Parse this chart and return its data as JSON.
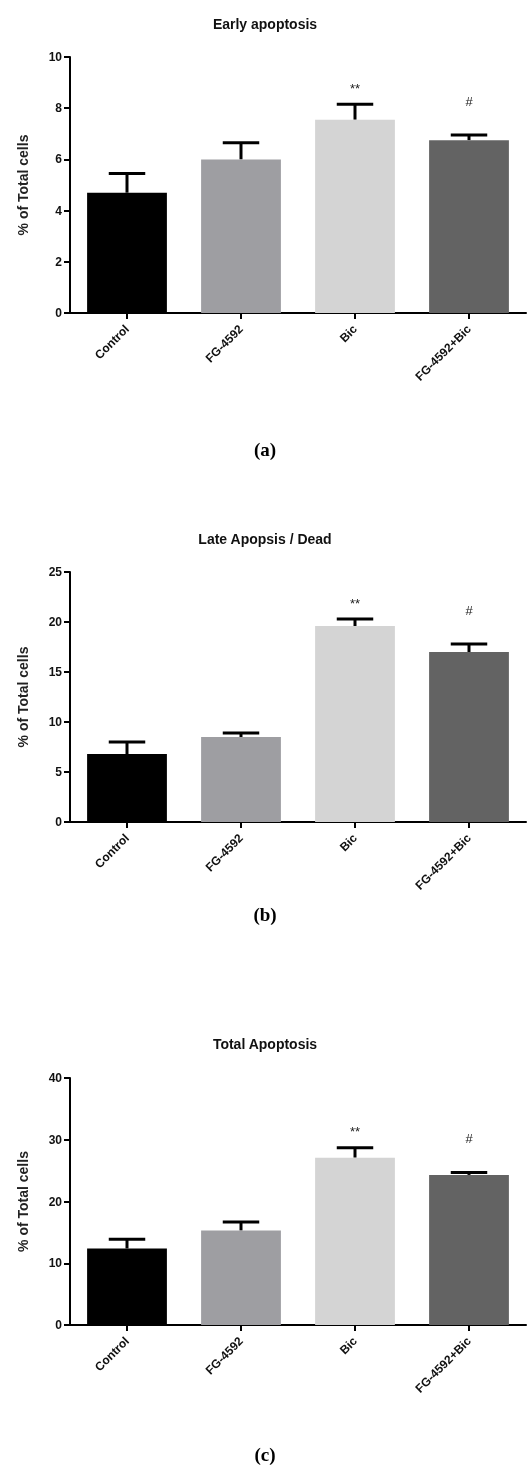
{
  "chart_data": [
    {
      "type": "bar",
      "title": "Early apoptosis",
      "ylabel": "% of Total cells",
      "categories": [
        "Control",
        "FG-4592",
        "Bic",
        "FG-4592+Bic"
      ],
      "values": [
        4.7,
        6.0,
        7.55,
        6.75
      ],
      "colors": [
        "#000000",
        "#9e9ea2",
        "#d4d4d4",
        "#636363"
      ],
      "errors": [
        [
          4.7,
          5.45
        ],
        [
          6.0,
          6.65
        ],
        [
          7.55,
          8.15
        ],
        [
          6.75,
          6.95
        ]
      ],
      "ylim": [
        0,
        10
      ],
      "yticks": [
        0,
        2,
        4,
        6,
        8,
        10
      ],
      "grid": false,
      "annotations": [
        {
          "text": "**",
          "x": "Bic",
          "y": 8.15
        },
        {
          "text": "#",
          "x": "FG-4592+Bic",
          "y": 6.95
        },
        "(a)"
      ]
    },
    {
      "type": "bar",
      "title": "Late Apopsis / Dead",
      "ylabel": "% of Total cells",
      "categories": [
        "Control",
        "FG-4592",
        "Bic",
        "FG-4592+Bic"
      ],
      "values": [
        6.8,
        8.5,
        19.6,
        17.0
      ],
      "colors": [
        "#000000",
        "#9e9ea2",
        "#d4d4d4",
        "#636363"
      ],
      "errors": [
        [
          6.8,
          8.0
        ],
        [
          8.5,
          8.9
        ],
        [
          19.6,
          20.3
        ],
        [
          17.0,
          17.8
        ]
      ],
      "ylim": [
        0,
        25
      ],
      "yticks": [
        0,
        5,
        10,
        15,
        20,
        25
      ],
      "grid": false,
      "annotations": [
        {
          "text": "**",
          "x": "Bic",
          "y": 20.3
        },
        {
          "text": "#",
          "x": "FG-4592+Bic",
          "y": 17.8
        },
        "(b)"
      ]
    },
    {
      "type": "bar",
      "title": "Total Apoptosis",
      "ylabel": "% of Total cells",
      "categories": [
        "Control",
        "FG-4592",
        "Bic",
        "FG-4592+Bic"
      ],
      "values": [
        12.4,
        15.3,
        27.1,
        24.3
      ],
      "colors": [
        "#000000",
        "#9e9ea2",
        "#d4d4d4",
        "#636363"
      ],
      "errors": [
        [
          12.4,
          13.9
        ],
        [
          15.3,
          16.7
        ],
        [
          27.1,
          28.7
        ],
        [
          24.3,
          24.7
        ]
      ],
      "ylim": [
        0,
        40
      ],
      "yticks": [
        0,
        10,
        20,
        30,
        40
      ],
      "grid": false,
      "annotations": [
        {
          "text": "**",
          "x": "Bic",
          "y": 28.7
        },
        {
          "text": "#",
          "x": "FG-4592+Bic",
          "y": 24.7
        },
        "(c)"
      ]
    }
  ]
}
